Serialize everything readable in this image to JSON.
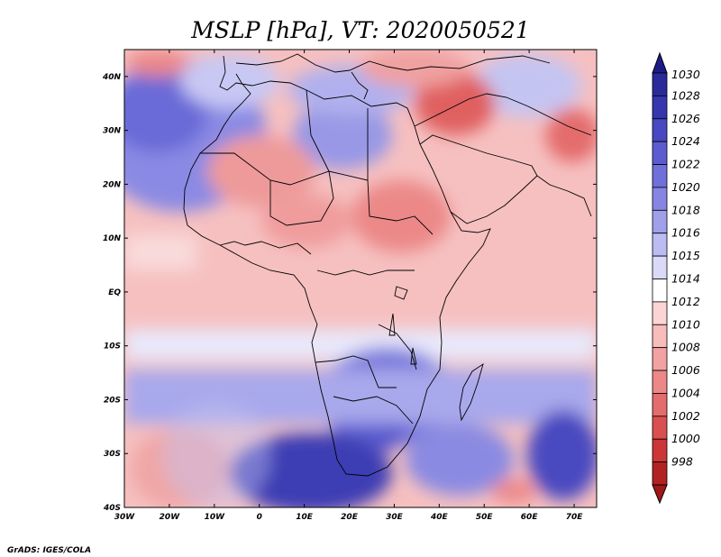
{
  "title": "MSLP [hPa], VT: 2020050521",
  "credit": "GrADS: IGES/COLA",
  "map": {
    "lon_labels": [
      "30W",
      "20W",
      "10W",
      "0",
      "10E",
      "20E",
      "30E",
      "40E",
      "50E",
      "60E",
      "70E"
    ],
    "lat_labels": [
      "40N",
      "30N",
      "20N",
      "10N",
      "EQ",
      "10S",
      "20S",
      "30S",
      "40S"
    ],
    "lon_range": [
      -30,
      75
    ],
    "lat_range": [
      -40,
      45
    ]
  },
  "colorbar": {
    "labels": [
      "1030",
      "1028",
      "1026",
      "1024",
      "1022",
      "1020",
      "1018",
      "1016",
      "1015",
      "1014",
      "1012",
      "1010",
      "1008",
      "1006",
      "1004",
      "1002",
      "1000",
      "998"
    ],
    "colors": [
      "#2a2a9a",
      "#3636ae",
      "#4848c2",
      "#5c5cd0",
      "#7070da",
      "#8686e2",
      "#a0a0ea",
      "#bcbcf2",
      "#dadaf8",
      "#ffffff",
      "#fcd4d4",
      "#f8bcbc",
      "#f2a2a2",
      "#ec8888",
      "#e46c6c",
      "#da5050",
      "#cc3636",
      "#b22222"
    ],
    "top_arrow_color": "#1c1c88",
    "bottom_arrow_color": "#a01818"
  }
}
